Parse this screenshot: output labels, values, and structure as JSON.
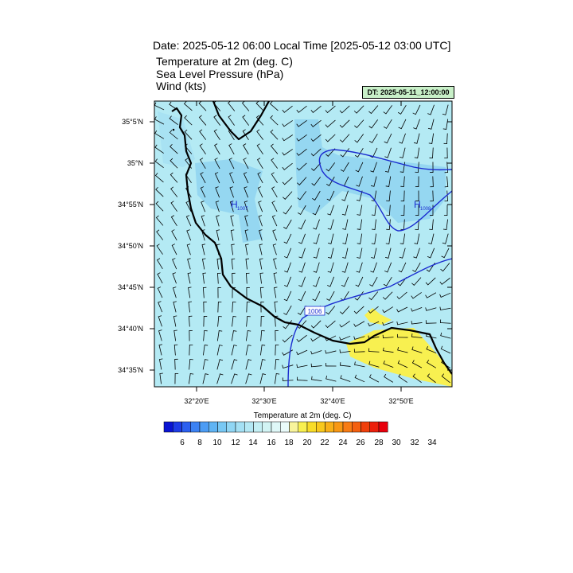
{
  "header": {
    "title": "Date: 2025-05-12  06:00 Local Time [2025-05-12  03:00 UTC]",
    "fields": [
      "Temperature at 2m   (deg. C)",
      "Sea Level Pressure   (hPa)",
      "Wind   (kts)"
    ],
    "init_time": "DT: 2025-05-11_12:00:00"
  },
  "map": {
    "lat_labels": [
      "35°5'N",
      "35°N",
      "34°55'N",
      "34°50'N",
      "34°45'N",
      "34°40'N",
      "34°35'N"
    ],
    "lon_labels": [
      "32°20'E",
      "32°30'E",
      "32°40'E",
      "32°50'E"
    ],
    "pressure_highs": [
      {
        "symbol": "H",
        "value": "1007"
      },
      {
        "symbol": "H",
        "value": "1008"
      }
    ],
    "isobar_label": "1006",
    "colors": {
      "sea": "#b4eaf4",
      "cool_patch": "#8fd4f0",
      "warm": "#f8f050",
      "isobar": "#1a2bd0",
      "coast": "#000000"
    }
  },
  "colorbar": {
    "title": "Temperature at 2m  (deg. C)",
    "labels": [
      "6",
      "8",
      "10",
      "12",
      "14",
      "16",
      "18",
      "20",
      "22",
      "24",
      "26",
      "28",
      "30",
      "32",
      "34"
    ],
    "colors": [
      "#0a14d2",
      "#1e3ce6",
      "#2c60f0",
      "#3c82f4",
      "#4c9cf4",
      "#60b4f4",
      "#78c8f4",
      "#90d6f4",
      "#a4e0f4",
      "#b4e8f4",
      "#c4eff4",
      "#d2f4f4",
      "#dff8f8",
      "#eafbfa",
      "#f8f49c",
      "#f8f050",
      "#f8dc28",
      "#f8c81c",
      "#f8b018",
      "#f89814",
      "#f87c14",
      "#f46010",
      "#f0400c",
      "#ec200c",
      "#e8000c"
    ]
  }
}
